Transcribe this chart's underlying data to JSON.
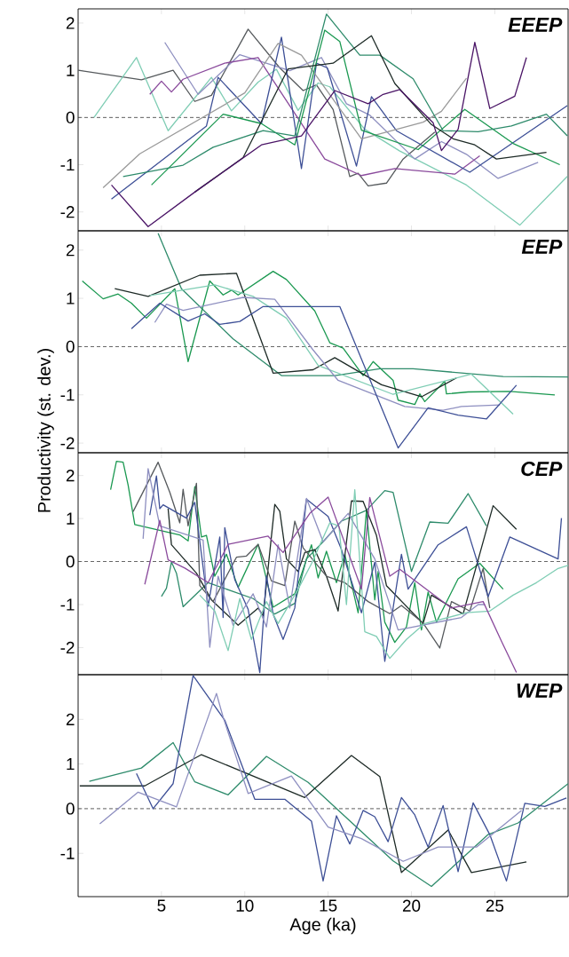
{
  "chart_data": [
    {
      "type": "line",
      "title": "EEEP",
      "xlim": [
        0,
        29.4
      ],
      "ylim": [
        -2.4,
        2.3
      ],
      "xticks": [
        5,
        10,
        15,
        20,
        25
      ],
      "yticks": [
        -2,
        -1,
        0,
        1,
        2
      ],
      "tick_labels": "y",
      "ref_lines": [
        {
          "axis": "y",
          "value": 0,
          "color": "#333333",
          "line_style": "dashed"
        }
      ],
      "series": [
        {
          "color": "#55595c",
          "x": [
            0,
            3.8,
            5.7,
            7.0,
            8.0,
            10.2,
            12.1,
            13.5,
            14.3,
            15.3,
            16.3,
            16.8,
            17.4,
            18.5,
            19.5,
            21.4
          ],
          "values": [
            1.0,
            0.8,
            1.0,
            0.34,
            0.47,
            1.87,
            1.05,
            0.57,
            0.69,
            0.17,
            -1.25,
            -1.18,
            -1.45,
            -1.39,
            -0.88,
            -0.31
          ]
        },
        {
          "color": "#7fcdb4",
          "x": [
            0.95,
            3.5,
            5.4,
            8.0,
            9.2,
            10.8,
            11.9,
            13.2,
            14.4,
            15.1,
            17.2,
            19.3,
            23.3,
            26.5,
            29.35
          ],
          "values": [
            0,
            1.27,
            -0.28,
            0.85,
            0.14,
            0.75,
            1.02,
            0.15,
            0.73,
            0.65,
            -0.25,
            -0.71,
            -1.43,
            -2.28,
            -1.25
          ]
        },
        {
          "color": "#8e8fc0",
          "x": [
            5.2,
            7.2,
            9.7,
            12.7,
            14.6,
            16.1,
            17.5,
            20.2,
            21.8,
            23.3,
            24.3,
            25.2,
            27.6
          ],
          "values": [
            1.59,
            0.49,
            1.33,
            0.99,
            1.27,
            0.29,
            0.05,
            -0.88,
            -0.51,
            -0.78,
            -1.05,
            -1.29,
            -0.95
          ]
        },
        {
          "color": "#8a4a9c",
          "x": [
            4.3,
            5.0,
            5.6,
            6.3,
            8.8,
            10.8,
            14.8,
            17.0,
            19.0,
            22.6,
            24.1
          ],
          "values": [
            0.49,
            0.77,
            0.54,
            0.81,
            1.15,
            1.27,
            -0.88,
            -1.23,
            -1.08,
            -1.2,
            -0.81
          ]
        },
        {
          "color": "#3d4f96",
          "x": [
            2.0,
            7.7,
            8.4,
            11.0,
            12.2,
            13.4,
            14.3,
            14.95,
            16.7,
            17.6,
            19.1,
            23.5,
            29.35
          ],
          "values": [
            -1.73,
            -0.18,
            0.85,
            -0.13,
            1.7,
            -1.08,
            1.15,
            1.05,
            -1.03,
            0.44,
            -0.28,
            -1.16,
            0.25
          ]
        },
        {
          "color": "#9a9a9a",
          "x": [
            1.5,
            3.7,
            10.0,
            12.0,
            13.4,
            17.0,
            20.7,
            21.8,
            23.3
          ],
          "values": [
            -1.49,
            -0.77,
            0.52,
            1.57,
            1.32,
            -0.45,
            -0.1,
            0.13,
            0.83
          ]
        },
        {
          "color": "#1a9850",
          "x": [
            4.4,
            8.7,
            11.0,
            13.0,
            14.8,
            15.7,
            17.0,
            20.4,
            23.2,
            26.1,
            28.9
          ],
          "values": [
            -1.43,
            0.07,
            -0.13,
            -0.58,
            1.85,
            1.61,
            -0.27,
            -0.68,
            0.17,
            -0.55,
            -1.0
          ]
        },
        {
          "color": "#2e8b6b",
          "x": [
            2.7,
            6.3,
            8.1,
            11.1,
            13.0,
            14.9,
            16.9,
            18.1,
            20.1,
            21.9,
            24.0,
            26.0,
            28.1,
            29.35
          ],
          "values": [
            -1.25,
            -1.01,
            -0.63,
            -0.28,
            -0.39,
            2.19,
            1.32,
            1.32,
            0.82,
            -0.28,
            -0.3,
            -0.18,
            0.07,
            -0.39
          ]
        },
        {
          "color": "#1d2a26",
          "x": [
            7.0,
            9.9,
            12.6,
            15.3,
            17.6,
            19.0,
            21.2,
            22.5,
            23.8,
            25.1,
            28.1
          ],
          "values": [
            -1.58,
            -0.85,
            1.03,
            1.15,
            1.73,
            0.72,
            -0.15,
            -0.45,
            -0.58,
            -0.88,
            -0.74
          ]
        },
        {
          "color": "#4a1466",
          "x": [
            2.0,
            4.2,
            7.0,
            11.0,
            13.4,
            15.4,
            17.4,
            18.3,
            19.3,
            21.3,
            21.8,
            22.8,
            23.8,
            24.7,
            26.2,
            26.9
          ],
          "values": [
            -1.43,
            -2.31,
            -1.58,
            -0.58,
            -0.39,
            0.57,
            0.29,
            0.49,
            0.59,
            -0.11,
            -0.7,
            -0.25,
            1.59,
            0.19,
            0.45,
            1.27
          ]
        }
      ]
    },
    {
      "type": "line",
      "title": "EEP",
      "ylabel": "Productivity (st. dev.)",
      "xlim": [
        0,
        29.4
      ],
      "ylim": [
        -2.2,
        2.4
      ],
      "xticks": [
        5,
        10,
        15,
        20,
        25
      ],
      "yticks": [
        -2,
        -1,
        0,
        1,
        2
      ],
      "tick_labels": "y",
      "ref_lines": [
        {
          "axis": "y",
          "value": 0,
          "color": "#333333",
          "line_style": "dashed"
        }
      ],
      "series": [
        {
          "color": "#1a9850",
          "x": [
            0.25,
            1.5,
            2.4,
            3.2,
            4.1,
            5.8,
            6.6,
            7.9,
            8.7,
            9.2,
            9.6,
            11.7,
            12.5,
            14.2,
            15.1,
            15.9,
            17.1,
            17.7,
            18.9,
            19.2,
            20.2,
            20.5,
            20.8,
            22.0,
            22.1,
            23.4,
            25.9,
            28.6
          ],
          "values": [
            1.36,
            0.99,
            1.09,
            0.9,
            0.59,
            1.2,
            -0.31,
            1.36,
            1.07,
            1.17,
            1.07,
            1.56,
            1.39,
            0.74,
            0.08,
            -0.03,
            -0.6,
            -0.31,
            -0.7,
            -1.11,
            -1.2,
            -0.98,
            -1.14,
            -0.72,
            -0.98,
            -0.94,
            -0.93,
            -1.0
          ]
        },
        {
          "color": "#2e8b6b",
          "x": [
            4.8,
            6.2,
            9.3,
            12.2,
            15.4,
            18.1,
            20.1,
            25.5,
            29.4
          ],
          "values": [
            2.35,
            1.2,
            0.16,
            -0.6,
            -0.6,
            -0.46,
            -0.46,
            -0.62,
            -0.63
          ]
        },
        {
          "color": "#1d2a26",
          "x": [
            2.2,
            4.2,
            7.3,
            9.5,
            11.7,
            14.1,
            15.4,
            18.2,
            20.6,
            22.7
          ],
          "values": [
            1.2,
            1.04,
            1.48,
            1.52,
            -0.55,
            -0.48,
            -0.23,
            -0.79,
            -1.04,
            -0.65
          ]
        },
        {
          "color": "#7fcdb4",
          "x": [
            4.3,
            8.2,
            10.5,
            12.5,
            14.4,
            18.9,
            23.6,
            26.1
          ],
          "values": [
            1.06,
            1.28,
            1.04,
            0.59,
            -0.39,
            -0.99,
            -0.57,
            -1.4
          ]
        },
        {
          "color": "#8e8fc0",
          "x": [
            4.6,
            5.3,
            6.3,
            9.9,
            11.8,
            14.1,
            15.6,
            17.9,
            19.6,
            21.9,
            23.0,
            25.3
          ],
          "values": [
            0.5,
            0.88,
            0.75,
            1.02,
            0.98,
            -0.07,
            -0.7,
            -1.01,
            -1.24,
            -1.32,
            -1.24,
            -1.21
          ]
        },
        {
          "color": "#3d4f96",
          "x": [
            3.2,
            4.9,
            6.6,
            7.6,
            8.5,
            9.7,
            11.1,
            15.7,
            19.2,
            21.0,
            22.8,
            24.5,
            26.3
          ],
          "values": [
            0.37,
            0.9,
            0.53,
            0.68,
            0.46,
            0.52,
            0.83,
            0.83,
            -2.1,
            -1.27,
            -1.42,
            -1.5,
            -0.8
          ]
        }
      ]
    },
    {
      "type": "line",
      "title": "CEP",
      "xlim": [
        0,
        29.4
      ],
      "ylim": [
        -2.63,
        2.53
      ],
      "xticks": [
        5,
        10,
        15,
        20,
        25
      ],
      "yticks": [
        -2,
        -1,
        0,
        1,
        2
      ],
      "tick_labels": "y",
      "ref_lines": [
        {
          "axis": "y",
          "value": 0,
          "color": "#333333",
          "line_style": "dashed"
        }
      ],
      "series": [
        {
          "color": "#1a9850",
          "x": [
            1.95,
            2.3,
            2.7,
            3.0,
            3.4,
            6.1,
            6.6,
            7.0,
            7.4,
            7.7,
            8.2,
            8.9,
            9.6,
            10.8,
            11.7,
            13.0,
            14.0,
            14.4,
            14.9,
            15.5,
            16.0,
            16.8,
            17.3,
            17.8,
            18.0,
            18.4,
            19.0,
            19.7,
            20.2,
            20.6,
            21.0,
            21.5,
            22.8,
            24.1,
            25.5
          ],
          "values": [
            1.67,
            2.33,
            2.31,
            1.78,
            0.86,
            0.62,
            0.48,
            1.74,
            0.57,
            0.61,
            -0.34,
            0.17,
            -0.6,
            0.4,
            -1.06,
            -0.75,
            0.39,
            -0.38,
            0.24,
            -0.49,
            0.17,
            -1.19,
            1.19,
            -0.89,
            -0.23,
            -1.41,
            -1.88,
            -1.52,
            -0.49,
            -1.59,
            -0.71,
            -1.41,
            -0.4,
            -0.04,
            -0.64
          ]
        },
        {
          "color": "#2e8b6b",
          "x": [
            5.0,
            5.3,
            5.6,
            5.9,
            6.3,
            7.8,
            10.5,
            11.8,
            13.0,
            13.7,
            14.7,
            15.8,
            17.3,
            18.4,
            18.9,
            20.0,
            21.1,
            22.2,
            23.4,
            24.5
          ],
          "values": [
            -0.81,
            -0.62,
            -0.01,
            -0.27,
            -1.05,
            -0.49,
            -0.86,
            -1.22,
            -0.97,
            0.06,
            0.46,
            0.94,
            1.19,
            1.65,
            1.61,
            -0.23,
            0.92,
            0.89,
            1.58,
            0.83
          ]
        },
        {
          "color": "#1d2a26",
          "x": [
            5.4,
            5.6,
            7.1,
            8.0,
            9.6,
            10.8,
            11.1,
            11.8,
            12.1,
            12.5,
            13.2,
            13.6,
            14.2,
            14.9,
            15.6,
            16.4,
            17.1,
            17.9,
            18.5,
            20.7,
            21.2,
            23.1,
            24.9,
            26.3
          ],
          "values": [
            1.23,
            0.39,
            -0.27,
            -0.89,
            -1.48,
            -1.08,
            -1.26,
            1.33,
            1.17,
            0.06,
            -0.23,
            0.21,
            0.28,
            -0.34,
            -1.15,
            1.41,
            1.4,
            0.61,
            -0.56,
            -1.44,
            -0.78,
            -1.22,
            1.3,
            0.75
          ]
        },
        {
          "color": "#55595c",
          "x": [
            3.3,
            4.8,
            5.5,
            6.1,
            6.3,
            6.6,
            7.1,
            7.3,
            8.1,
            9.5,
            10.1,
            10.8,
            11.6,
            12.4,
            13.0,
            13.5,
            14.9,
            16.0,
            17.4,
            18.7,
            19.4,
            20.7,
            21.7,
            22.4,
            23.5,
            24.3,
            24.7
          ],
          "values": [
            1.16,
            2.31,
            1.61,
            0.9,
            1.68,
            0.83,
            1.82,
            -0.56,
            -0.93,
            0.1,
            0.13,
            0.4,
            -0.45,
            -0.56,
            0.94,
            0.32,
            -0.34,
            -0.49,
            -0.93,
            -1.21,
            -1.02,
            -1.43,
            -2.01,
            -0.93,
            -1.15,
            -0.16,
            -1.08
          ]
        },
        {
          "color": "#3d4f96",
          "x": [
            4.3,
            4.7,
            4.9,
            5.1,
            6.5,
            7.0,
            7.8,
            8.5,
            8.7,
            8.8,
            9.4,
            10.2,
            10.9,
            11.3,
            11.7,
            12.3,
            13.0,
            13.7,
            15.0,
            15.8,
            17.0,
            17.8,
            18.4,
            19.4,
            19.8,
            21.6,
            23.3,
            24.6,
            25.9,
            28.8,
            29.0
          ],
          "values": [
            1.08,
            1.99,
            1.23,
            1.32,
            1.01,
            1.38,
            -1.04,
            0.57,
            -1.3,
            0.79,
            -0.42,
            -1.11,
            -2.58,
            -0.33,
            -1.22,
            -1.81,
            -1.08,
            1.45,
            1.05,
            0.28,
            -1.19,
            -0.01,
            -2.32,
            0.17,
            -0.64,
            0.39,
            0.81,
            -0.82,
            0.57,
            0.06,
            1.01
          ]
        },
        {
          "color": "#8e8fc0",
          "x": [
            3.9,
            4.2,
            4.9,
            7.5,
            7.9,
            8.4,
            9.3,
            10.5,
            11.3,
            12.0,
            12.7,
            13.7,
            14.7,
            16.2,
            17.8,
            19.2,
            23.0,
            24.0,
            24.4
          ],
          "values": [
            0.53,
            2.16,
            0.83,
            0.5,
            -1.99,
            -0.34,
            -1.48,
            -0.75,
            -1.52,
            0.39,
            -1.08,
            1.47,
            0.46,
            1.12,
            0.06,
            -1.59,
            -1.3,
            -1.0,
            -1.0
          ]
        },
        {
          "color": "#7fcdb4",
          "x": [
            7.3,
            8.2,
            9.0,
            9.7,
            10.4,
            11.3,
            12.0,
            13.2,
            14.0,
            15.1,
            15.65,
            16.1,
            16.6,
            17.2,
            17.9,
            18.7,
            19.7,
            20.8,
            23.3,
            24.7,
            26.1,
            27.5,
            28.8,
            29.4
          ],
          "values": [
            -0.78,
            -1.15,
            -2.07,
            -0.86,
            -1.81,
            -0.93,
            -1.44,
            -0.64,
            -0.05,
            0.9,
            0.83,
            -1.0,
            1.67,
            -1.63,
            -1.74,
            -2.25,
            -1.81,
            -1.44,
            -1.19,
            -1.15,
            -0.78,
            -0.49,
            -0.16,
            -0.09
          ]
        },
        {
          "color": "#8a4a9c",
          "x": [
            4.0,
            4.9,
            5.4,
            6.4,
            7.8,
            9.0,
            11.4,
            12.3,
            13.9,
            15.0,
            17.0,
            17.5,
            18.7,
            19.3,
            22.4,
            24.3,
            25.4,
            26.3
          ],
          "values": [
            -0.53,
            0.96,
            0.04,
            -0.15,
            -0.49,
            0.4,
            0.59,
            0.21,
            1.12,
            1.5,
            -0.64,
            1.49,
            -0.34,
            -0.18,
            -1.08,
            -0.93,
            -1.85,
            -2.58
          ]
        }
      ]
    },
    {
      "type": "line",
      "title": "WEP",
      "xlabel": "Age (ka)",
      "xlim": [
        0,
        29.4
      ],
      "ylim": [
        -1.97,
        3.0
      ],
      "xticks": [
        5,
        10,
        15,
        20,
        25
      ],
      "yticks": [
        -1,
        0,
        1,
        2
      ],
      "ref_lines": [
        {
          "axis": "y",
          "value": 0,
          "color": "#333333",
          "line_style": "dashed"
        }
      ],
      "series": [
        {
          "color": "#2e8b6b",
          "x": [
            0.67,
            3.8,
            5.7,
            7.0,
            9.0,
            11.3,
            13.8,
            18.9,
            21.2,
            24.6,
            26.4,
            29.4
          ],
          "values": [
            0.61,
            0.91,
            1.48,
            0.6,
            0.31,
            1.17,
            0.59,
            -1.17,
            -1.74,
            -0.58,
            -0.32,
            0.56
          ]
        },
        {
          "color": "#1d2a26",
          "x": [
            0.1,
            4.0,
            7.4,
            13.6,
            16.4,
            18.1,
            19.4,
            22.2,
            23.6,
            26.9
          ],
          "values": [
            0.51,
            0.51,
            1.21,
            0.25,
            1.19,
            0.72,
            -1.43,
            -0.48,
            -1.43,
            -1.19
          ]
        },
        {
          "color": "#3d4f96",
          "x": [
            3.5,
            4.5,
            5.7,
            6.9,
            8.8,
            10.6,
            12.4,
            14.0,
            14.7,
            15.5,
            16.3,
            17.1,
            17.8,
            18.6,
            19.4,
            20.2,
            21.0,
            21.9,
            22.8,
            23.7,
            24.7,
            25.7,
            26.8,
            28.0,
            29.3
          ],
          "values": [
            0.79,
            0.0,
            0.56,
            2.98,
            1.98,
            0.21,
            0.21,
            -0.28,
            -1.62,
            -0.16,
            -0.79,
            -0.04,
            -0.18,
            -0.74,
            0.25,
            -0.14,
            -0.86,
            0.07,
            -1.41,
            0.13,
            -0.58,
            -1.62,
            0.12,
            0.05,
            0.24
          ]
        },
        {
          "color": "#8e8fc0",
          "x": [
            1.3,
            3.6,
            5.9,
            8.3,
            8.7,
            10.2,
            12.8,
            15.0,
            17.0,
            19.5,
            21.6,
            23.9,
            26.6
          ],
          "values": [
            -0.34,
            0.37,
            0.04,
            2.58,
            2.05,
            0.34,
            0.73,
            -0.41,
            -0.67,
            -1.18,
            -0.86,
            -0.86,
            -0.04
          ]
        }
      ]
    }
  ]
}
